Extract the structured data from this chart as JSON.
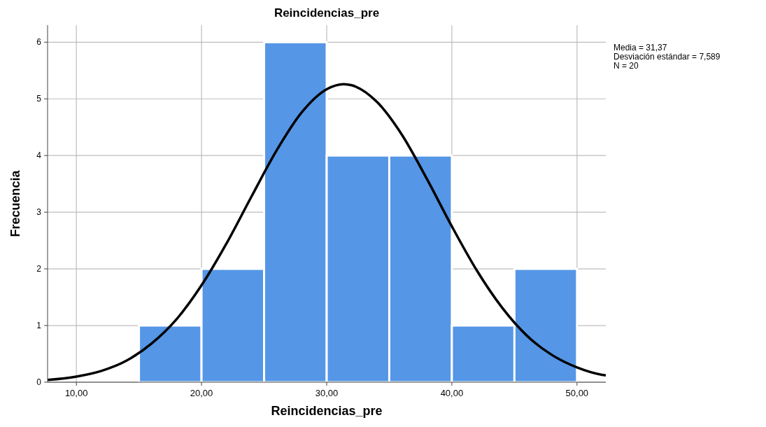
{
  "chart_data": {
    "type": "histogram",
    "title": "Reincidencias_pre",
    "xlabel": "Reincidencias_pre",
    "ylabel": "Frecuencia",
    "annotations": [
      "Media = 31,37",
      "Desviación estándar = 7,589",
      "N = 20"
    ],
    "bins": [
      15,
      20,
      25,
      30,
      35,
      40,
      45,
      50
    ],
    "series": [
      {
        "color": "#5596e6",
        "values": [
          1,
          2,
          6,
          4,
          4,
          1,
          2
        ]
      },
      {
        "type": "line",
        "color": "#000000",
        "x": [
          7.7,
          10,
          12,
          14,
          16,
          18,
          20,
          22,
          24,
          26,
          28,
          30,
          31.37,
          32,
          34,
          36,
          38,
          40,
          42,
          44,
          46,
          48,
          50,
          52,
          52.3
        ],
        "values": [
          0.04,
          0.1,
          0.2,
          0.38,
          0.68,
          1.11,
          1.71,
          2.45,
          3.28,
          4.09,
          4.76,
          5.17,
          5.26,
          5.24,
          4.95,
          4.37,
          3.59,
          2.75,
          1.97,
          1.32,
          0.82,
          0.48,
          0.26,
          0.13,
          0.12
        ]
      }
    ],
    "xlim": [
      7.7,
      52.3
    ],
    "ylim": [
      0,
      6.3
    ],
    "xticks": [
      {
        "value": 10,
        "label": "10,00"
      },
      {
        "value": 20,
        "label": "20,00"
      },
      {
        "value": 30,
        "label": "30,00"
      },
      {
        "value": 40,
        "label": "40,00"
      },
      {
        "value": 50,
        "label": "50,00"
      }
    ],
    "yticks": [
      0,
      1,
      2,
      3,
      4,
      5,
      6
    ],
    "grid": true,
    "marker": "none",
    "line_style": "solid"
  }
}
